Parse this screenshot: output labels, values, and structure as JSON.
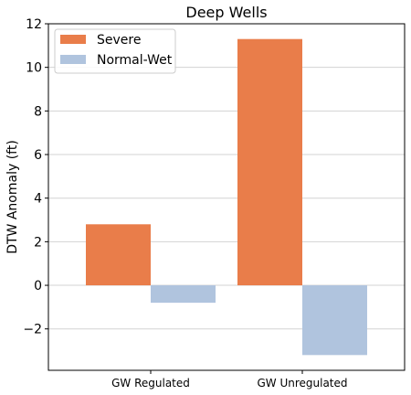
{
  "chart_data": {
    "type": "bar",
    "title": "Deep Wells",
    "xlabel": "",
    "ylabel": "DTW Anomaly (ft)",
    "categories": [
      "GW Regulated",
      "GW Unregulated"
    ],
    "series": [
      {
        "name": "Severe",
        "color": "#e97d4a",
        "values": [
          2.8,
          11.3
        ]
      },
      {
        "name": "Normal-Wet",
        "color": "#b0c4de",
        "values": [
          -0.8,
          -3.2
        ]
      }
    ],
    "ylim": [
      -3.9,
      12.0
    ],
    "yticks": [
      -2,
      0,
      2,
      4,
      6,
      8,
      10,
      12
    ],
    "ytick_labels": [
      "−2",
      "0",
      "2",
      "4",
      "6",
      "8",
      "10",
      "12"
    ],
    "grid": "horizontal",
    "legend_position": "top-left"
  }
}
